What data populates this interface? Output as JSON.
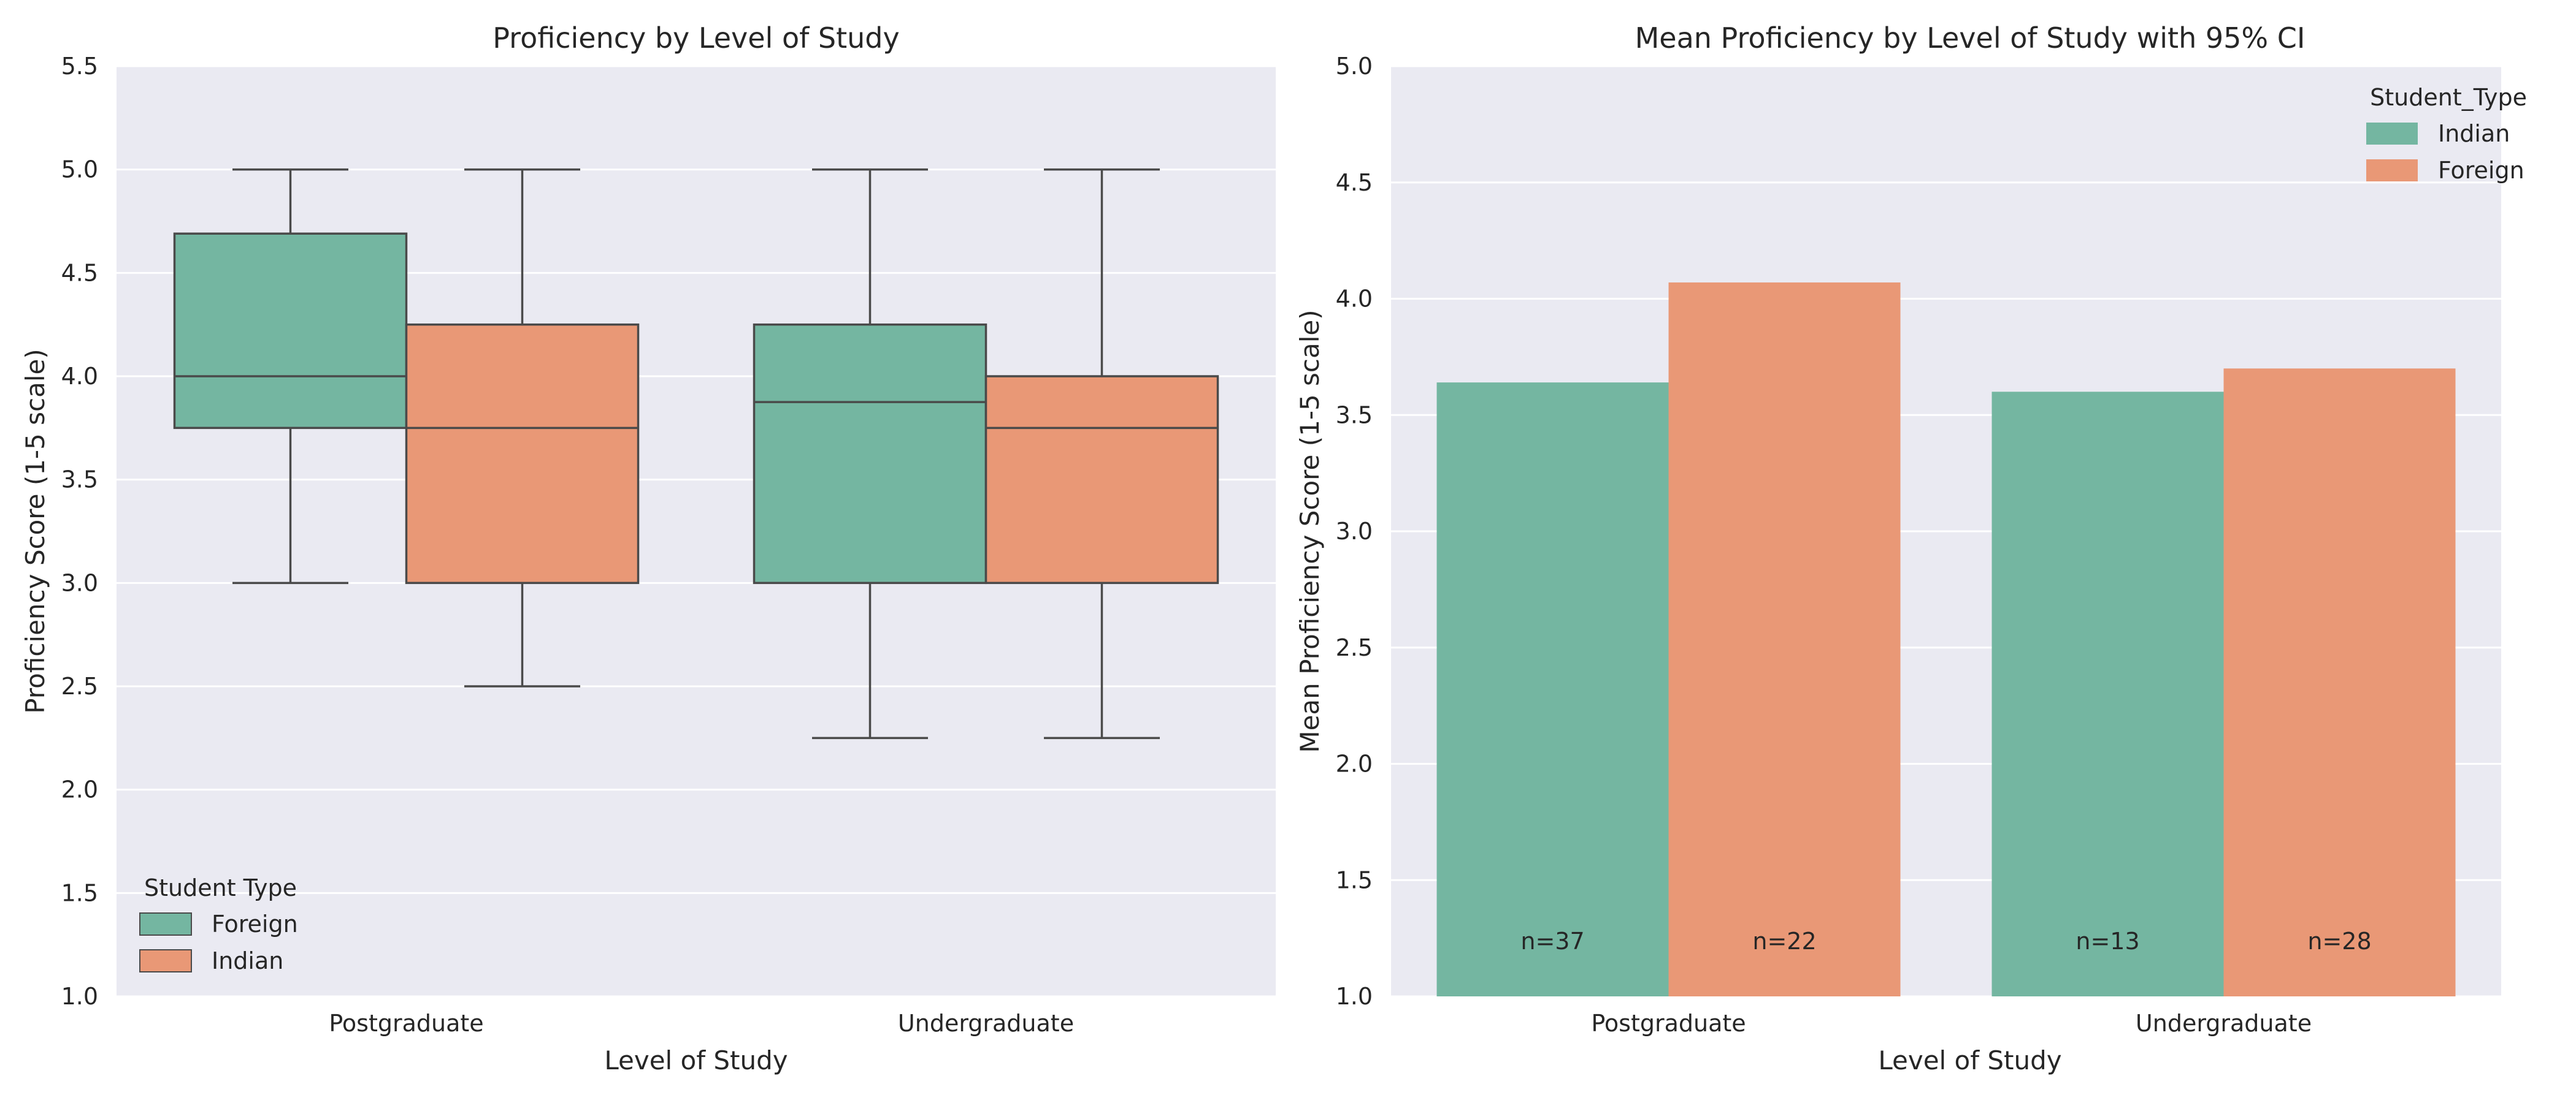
{
  "chart_data": [
    {
      "type": "box",
      "title": "Proficiency by Level of Study",
      "xlabel": "Level of Study",
      "ylabel": "Proficiency Score (1-5 scale)",
      "ylim": [
        1.0,
        5.5
      ],
      "yticks": [
        "1.0",
        "1.5",
        "2.0",
        "2.5",
        "3.0",
        "3.5",
        "4.0",
        "4.5",
        "5.0",
        "5.5"
      ],
      "categories": [
        "Postgraduate",
        "Undergraduate"
      ],
      "grid": true,
      "legend": {
        "title": "Student Type",
        "placement": "lower-left"
      },
      "series": [
        {
          "name": "Foreign",
          "color": "#74b6a1",
          "boxes": [
            {
              "whisker_low": 3.0,
              "q1": 3.75,
              "median": 4.0,
              "q3": 4.69,
              "whisker_high": 5.0
            },
            {
              "whisker_low": 2.25,
              "q1": 3.0,
              "median": 3.875,
              "q3": 4.25,
              "whisker_high": 5.0
            }
          ]
        },
        {
          "name": "Indian",
          "color": "#e99876",
          "boxes": [
            {
              "whisker_low": 2.5,
              "q1": 3.0,
              "median": 3.75,
              "q3": 4.25,
              "whisker_high": 5.0
            },
            {
              "whisker_low": 2.25,
              "q1": 3.0,
              "median": 3.75,
              "q3": 4.0,
              "whisker_high": 5.0
            }
          ]
        }
      ]
    },
    {
      "type": "bar",
      "title": "Mean Proficiency by Level of Study with 95% CI",
      "xlabel": "Level of Study",
      "ylabel": "Mean Proficiency Score (1-5 scale)",
      "ylim": [
        1.0,
        5.0
      ],
      "yticks": [
        "1.0",
        "1.5",
        "2.0",
        "2.5",
        "3.0",
        "3.5",
        "4.0",
        "4.5",
        "5.0"
      ],
      "categories": [
        "Postgraduate",
        "Undergraduate"
      ],
      "grid": true,
      "legend": {
        "title": "Student_Type",
        "placement": "top-right"
      },
      "series": [
        {
          "name": "Indian",
          "color": "#74b6a1",
          "values": [
            3.64,
            3.6
          ],
          "n_labels": [
            "n=37",
            "n=13"
          ]
        },
        {
          "name": "Foreign",
          "color": "#e99876",
          "values": [
            4.07,
            3.7
          ],
          "n_labels": [
            "n=22",
            "n=28"
          ]
        }
      ]
    }
  ]
}
